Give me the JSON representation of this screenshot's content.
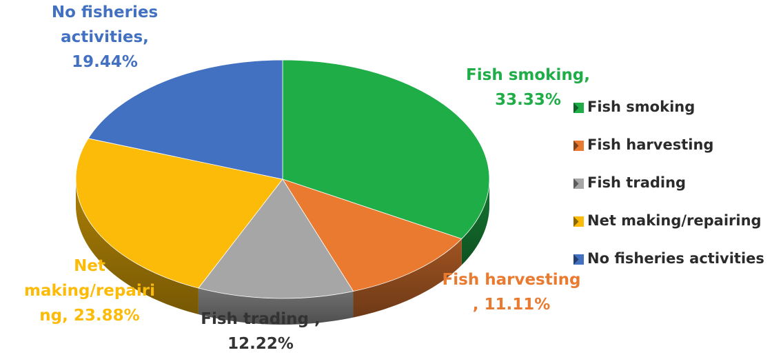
{
  "chart_data": {
    "type": "pie",
    "title": "",
    "categories": [
      "Fish smoking",
      "Fish harvesting",
      "Fish trading",
      "Net making/repairing",
      "No fisheries activities"
    ],
    "values": [
      33.33,
      11.11,
      12.22,
      23.88,
      19.44
    ],
    "unit": "%",
    "colors": [
      "#1fad48",
      "#e97a30",
      "#a6a6a6",
      "#fdbb09",
      "#4371c2"
    ],
    "data_labels": [
      [
        "Fish smoking,",
        "33.33%"
      ],
      [
        "Fish harvesting",
        ", 11.11%"
      ],
      [
        "Fish trading ,",
        "12.22%"
      ],
      [
        "Net",
        "making/repairi",
        "ng, 23.88%"
      ],
      [
        "No fisheries",
        "activities,",
        "19.44%"
      ]
    ],
    "label_colors": [
      "#1fad48",
      "#e97a30",
      "#333333",
      "#fdbb09",
      "#4371c2"
    ],
    "legend": {
      "position": "right",
      "entries": [
        "Fish smoking",
        "Fish harvesting",
        "Fish trading",
        "Net making/repairing",
        "No fisheries activities"
      ]
    },
    "style": "3d"
  }
}
